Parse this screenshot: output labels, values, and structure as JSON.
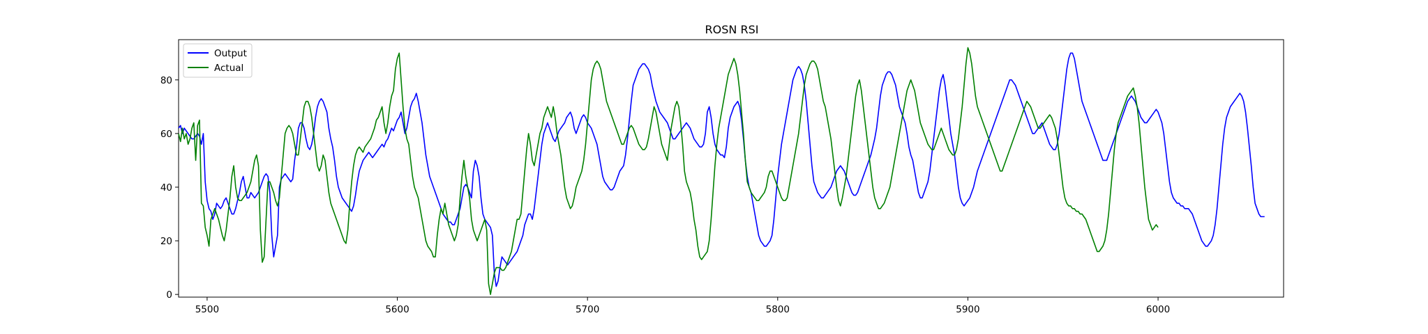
{
  "chart_data": {
    "type": "line",
    "title": "ROSN RSI",
    "xlabel": "",
    "ylabel": "",
    "xlim": [
      5485,
      5640
    ],
    "ylim": [
      -1,
      95
    ],
    "xticks": [
      5500,
      5600,
      5700,
      5800,
      5900,
      6000
    ],
    "yticks": [
      0,
      20,
      40,
      60,
      80
    ],
    "grid": false,
    "legend_position": "top-left",
    "series": [
      {
        "name": "Output",
        "color": "#0000ff",
        "x_start": 5485,
        "values": [
          62,
          63,
          60,
          62,
          61,
          60,
          59,
          58,
          58,
          59,
          60,
          59,
          56,
          60,
          42,
          35,
          32,
          31,
          28,
          30,
          34,
          33,
          32,
          33,
          35,
          36,
          34,
          32,
          30,
          30,
          32,
          35,
          38,
          42,
          44,
          40,
          36,
          36,
          38,
          37,
          36,
          37,
          38,
          40,
          42,
          44,
          45,
          44,
          38,
          22,
          14,
          18,
          22,
          40,
          43,
          44,
          45,
          44,
          43,
          42,
          43,
          50,
          55,
          62,
          64,
          64,
          62,
          58,
          55,
          54,
          56,
          60,
          66,
          70,
          72,
          73,
          72,
          70,
          68,
          62,
          58,
          55,
          50,
          44,
          40,
          38,
          36,
          35,
          34,
          33,
          32,
          31,
          33,
          37,
          42,
          46,
          48,
          50,
          51,
          52,
          53,
          52,
          51,
          52,
          53,
          54,
          55,
          56,
          55,
          57,
          58,
          60,
          62,
          61,
          63,
          65,
          66,
          68,
          64,
          60,
          62,
          66,
          70,
          72,
          73,
          75,
          72,
          68,
          64,
          58,
          52,
          48,
          44,
          42,
          40,
          38,
          36,
          34,
          32,
          30,
          29,
          28,
          27,
          27,
          26,
          26,
          28,
          30,
          32,
          36,
          40,
          41,
          40,
          38,
          36,
          46,
          50,
          48,
          44,
          36,
          30,
          28,
          27,
          26,
          25,
          22,
          8,
          3,
          5,
          10,
          14,
          13,
          12,
          11,
          12,
          13,
          14,
          15,
          16,
          18,
          20,
          22,
          26,
          28,
          30,
          30,
          28,
          32,
          38,
          44,
          50,
          56,
          60,
          62,
          64,
          62,
          60,
          58,
          57,
          59,
          61,
          62,
          63,
          64,
          66,
          67,
          68,
          66,
          62,
          60,
          62,
          64,
          66,
          67,
          66,
          64,
          63,
          62,
          60,
          58,
          56,
          52,
          48,
          44,
          42,
          41,
          40,
          39,
          39,
          40,
          42,
          44,
          46,
          47,
          48,
          52,
          58,
          65,
          72,
          78,
          80,
          82,
          84,
          85,
          86,
          86,
          85,
          84,
          82,
          78,
          75,
          72,
          70,
          68,
          67,
          66,
          65,
          64,
          62,
          60,
          58,
          58,
          59,
          60,
          61,
          62,
          63,
          64,
          63,
          62,
          60,
          58,
          57,
          56,
          55,
          55,
          56,
          60,
          68,
          70,
          66,
          60,
          56,
          54,
          53,
          52,
          52,
          51,
          55,
          62,
          66,
          68,
          70,
          71,
          72,
          70,
          65,
          58,
          50,
          44,
          40,
          38,
          34,
          30,
          26,
          22,
          20,
          19,
          18,
          18,
          19,
          20,
          22,
          28,
          36,
          44,
          50,
          56,
          60,
          64,
          68,
          72,
          76,
          80,
          82,
          84,
          85,
          84,
          82,
          78,
          72,
          64,
          56,
          48,
          42,
          40,
          38,
          37,
          36,
          36,
          37,
          38,
          39,
          40,
          42,
          44,
          46,
          47,
          48,
          47,
          46,
          44,
          42,
          40,
          38,
          37,
          37,
          38,
          40,
          42,
          44,
          46,
          48,
          50,
          52,
          55,
          58,
          62,
          68,
          74,
          78,
          80,
          82,
          83,
          83,
          82,
          80,
          78,
          74,
          70,
          68,
          66,
          64,
          60,
          55,
          52,
          50,
          46,
          42,
          38,
          36,
          36,
          38,
          40,
          42,
          46,
          52,
          58,
          64,
          70,
          76,
          80,
          82,
          78,
          72,
          66,
          60,
          56,
          52,
          46,
          40,
          36,
          34,
          33,
          34,
          35,
          36,
          38,
          40,
          43,
          46,
          48,
          50,
          52,
          54,
          56,
          58,
          60,
          62,
          64,
          66,
          68,
          70,
          72,
          74,
          76,
          78,
          80,
          80,
          79,
          78,
          76,
          74,
          72,
          70,
          68,
          66,
          64,
          62,
          60,
          60,
          61,
          62,
          63,
          64,
          62,
          60,
          58,
          56,
          55,
          54,
          54,
          56,
          60,
          66,
          72,
          78,
          84,
          88,
          90,
          90,
          88,
          84,
          80,
          76,
          72,
          70,
          68,
          66,
          64,
          62,
          60,
          58,
          56,
          54,
          52,
          50,
          50,
          50,
          52,
          54,
          56,
          58,
          60,
          62,
          64,
          66,
          68,
          70,
          72,
          73,
          74,
          73,
          72,
          70,
          68,
          66,
          65,
          64,
          64,
          65,
          66,
          67,
          68,
          69,
          68,
          66,
          64,
          60,
          54,
          48,
          42,
          38,
          36,
          35,
          34,
          34,
          33,
          33,
          32,
          32,
          32,
          31,
          30,
          28,
          26,
          24,
          22,
          20,
          19,
          18,
          18,
          19,
          20,
          22,
          26,
          32,
          40,
          48,
          56,
          62,
          66,
          68,
          70,
          71,
          72,
          73,
          74,
          75,
          74,
          72,
          68,
          62,
          55,
          48,
          40,
          34,
          32,
          30,
          29,
          29,
          29
        ]
      },
      {
        "name": "Actual",
        "color": "#008000",
        "x_start": 5485,
        "values": [
          60,
          57,
          62,
          58,
          60,
          56,
          58,
          62,
          64,
          50,
          63,
          65,
          34,
          33,
          25,
          22,
          18,
          28,
          30,
          32,
          30,
          28,
          25,
          22,
          20,
          24,
          30,
          36,
          44,
          48,
          40,
          36,
          35,
          35,
          36,
          37,
          38,
          40,
          42,
          46,
          50,
          52,
          48,
          24,
          12,
          14,
          28,
          42,
          42,
          40,
          38,
          35,
          33,
          36,
          44,
          52,
          60,
          62,
          63,
          62,
          60,
          56,
          52,
          52,
          58,
          64,
          70,
          72,
          72,
          70,
          66,
          60,
          54,
          48,
          46,
          48,
          52,
          50,
          44,
          38,
          34,
          32,
          30,
          28,
          26,
          24,
          22,
          20,
          19,
          24,
          34,
          42,
          48,
          52,
          54,
          55,
          54,
          53,
          55,
          56,
          57,
          58,
          60,
          62,
          65,
          66,
          68,
          70,
          64,
          60,
          64,
          70,
          74,
          76,
          84,
          88,
          90,
          80,
          70,
          62,
          58,
          56,
          50,
          44,
          40,
          38,
          36,
          32,
          28,
          24,
          20,
          18,
          17,
          16,
          14,
          14,
          22,
          28,
          32,
          30,
          34,
          30,
          26,
          24,
          22,
          20,
          22,
          26,
          36,
          44,
          50,
          44,
          40,
          36,
          28,
          24,
          22,
          20,
          22,
          24,
          26,
          28,
          24,
          4,
          0,
          4,
          8,
          10,
          10,
          10,
          9,
          9,
          10,
          12,
          14,
          16,
          20,
          24,
          28,
          28,
          30,
          38,
          46,
          54,
          60,
          56,
          50,
          48,
          52,
          56,
          60,
          62,
          66,
          68,
          70,
          68,
          66,
          70,
          66,
          60,
          56,
          52,
          46,
          40,
          36,
          34,
          32,
          33,
          36,
          40,
          42,
          44,
          46,
          50,
          56,
          64,
          72,
          80,
          84,
          86,
          87,
          86,
          84,
          80,
          76,
          72,
          70,
          68,
          66,
          64,
          62,
          60,
          58,
          56,
          56,
          58,
          60,
          62,
          63,
          62,
          60,
          58,
          56,
          55,
          54,
          54,
          55,
          58,
          62,
          66,
          70,
          68,
          64,
          60,
          56,
          54,
          52,
          50,
          56,
          62,
          66,
          70,
          72,
          70,
          64,
          56,
          46,
          42,
          40,
          38,
          34,
          28,
          24,
          18,
          14,
          13,
          14,
          15,
          16,
          20,
          28,
          38,
          48,
          56,
          62,
          66,
          70,
          74,
          78,
          82,
          84,
          86,
          88,
          86,
          82,
          76,
          68,
          60,
          50,
          42,
          40,
          38,
          37,
          36,
          35,
          35,
          36,
          37,
          38,
          40,
          44,
          46,
          46,
          44,
          42,
          40,
          38,
          36,
          35,
          35,
          36,
          40,
          44,
          48,
          52,
          56,
          60,
          66,
          72,
          78,
          82,
          84,
          86,
          87,
          87,
          86,
          84,
          80,
          76,
          72,
          70,
          66,
          62,
          58,
          52,
          46,
          40,
          35,
          33,
          36,
          40,
          44,
          50,
          56,
          62,
          68,
          74,
          78,
          80,
          76,
          70,
          64,
          58,
          52,
          46,
          40,
          36,
          34,
          32,
          32,
          33,
          34,
          36,
          38,
          40,
          44,
          48,
          52,
          56,
          60,
          64,
          68,
          72,
          76,
          78,
          80,
          78,
          76,
          72,
          68,
          64,
          62,
          60,
          58,
          56,
          55,
          54,
          54,
          56,
          58,
          60,
          62,
          60,
          58,
          56,
          54,
          53,
          52,
          52,
          54,
          58,
          64,
          70,
          78,
          86,
          92,
          90,
          86,
          80,
          74,
          70,
          68,
          66,
          64,
          62,
          60,
          58,
          56,
          54,
          52,
          50,
          48,
          46,
          46,
          48,
          50,
          52,
          54,
          56,
          58,
          60,
          62,
          64,
          66,
          68,
          70,
          72,
          71,
          70,
          68,
          66,
          64,
          62,
          62,
          63,
          64,
          65,
          66,
          67,
          66,
          64,
          62,
          58,
          52,
          46,
          40,
          36,
          34,
          33,
          33,
          32,
          32,
          31,
          31,
          30,
          30,
          29,
          28,
          26,
          24,
          22,
          20,
          18,
          16,
          16,
          17,
          18,
          20,
          24,
          30,
          38,
          46,
          54,
          60,
          64,
          66,
          68,
          70,
          72,
          74,
          75,
          76,
          77,
          74,
          70,
          64,
          56,
          48,
          40,
          34,
          28,
          26,
          24,
          25,
          26,
          25
        ]
      }
    ]
  }
}
